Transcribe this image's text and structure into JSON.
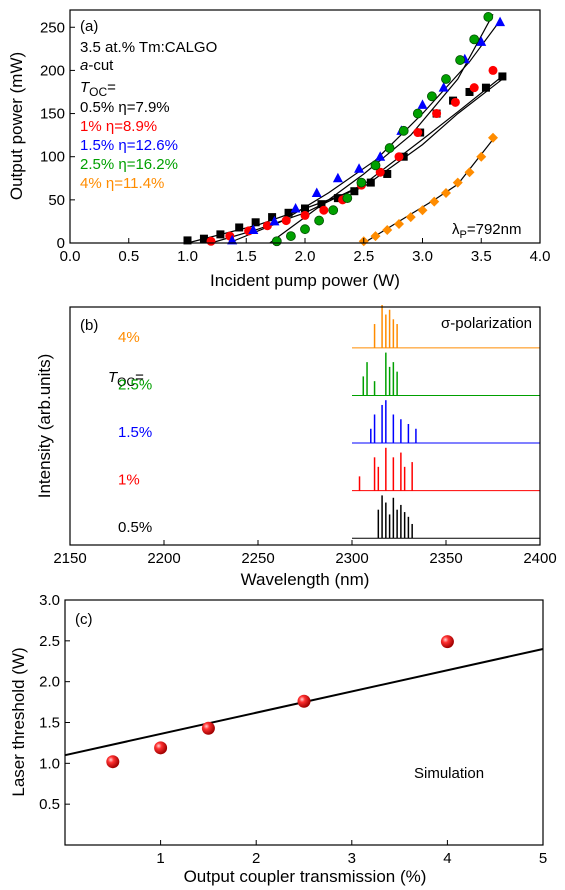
{
  "chart_data": [
    {
      "type": "scatter",
      "panel_label": "(a)",
      "xlabel": "Incident pump power (W)",
      "ylabel": "Output power (mW)",
      "xlim": [
        0,
        4
      ],
      "ylim": [
        0,
        270
      ],
      "xticks": [
        "0.0",
        "0.5",
        "1.0",
        "1.5",
        "2.0",
        "2.5",
        "3.0",
        "3.5",
        "4.0"
      ],
      "yticks": [
        "0",
        "50",
        "100",
        "150",
        "200",
        "250"
      ],
      "annotations": {
        "crystal": "3.5 at.% Tm:CALGO",
        "cut_italic": "a",
        "cut_rest": "-cut",
        "toc_italic": "T",
        "toc_sub": "OC",
        "toc_eq": "=",
        "pump_lambda": "λ",
        "pump_sub": "P",
        "pump_value": "=792nm"
      },
      "series": [
        {
          "name": "0.5% η=7.9%",
          "color": "#000000",
          "marker": "square",
          "x": [
            1.0,
            1.14,
            1.28,
            1.44,
            1.58,
            1.72,
            1.86,
            2.0,
            2.14,
            2.28,
            2.42,
            2.56,
            2.7,
            2.84,
            2.98,
            3.12,
            3.26,
            3.4,
            3.54,
            3.68
          ],
          "y": [
            3,
            5,
            10,
            18,
            24,
            30,
            35,
            40,
            45,
            52,
            60,
            70,
            80,
            100,
            128,
            150,
            165,
            175,
            180,
            193
          ],
          "fit": [
            [
              1.0,
              0
            ],
            [
              1.6,
              21
            ],
            [
              2.0,
              40
            ],
            [
              2.5,
              65
            ],
            [
              3.0,
              114
            ],
            [
              3.3,
              150
            ],
            [
              3.7,
              192
            ]
          ]
        },
        {
          "name": "1% η=8.9%",
          "color": "#ff0000",
          "marker": "circle",
          "x": [
            1.2,
            1.36,
            1.52,
            1.68,
            1.84,
            2.0,
            2.16,
            2.32,
            2.48,
            2.64,
            2.8,
            2.96,
            3.12,
            3.28,
            3.44,
            3.6
          ],
          "y": [
            2,
            8,
            14,
            20,
            26,
            32,
            38,
            50,
            67,
            82,
            100,
            128,
            150,
            163,
            180,
            200
          ],
          "fit": [
            [
              1.2,
              0
            ],
            [
              1.6,
              16
            ],
            [
              2.0,
              35
            ],
            [
              2.5,
              68
            ],
            [
              3.0,
              120
            ],
            [
              3.3,
              152
            ],
            [
              3.65,
              190
            ]
          ]
        },
        {
          "name": "1.5% η=12.6%",
          "color": "#0000ff",
          "marker": "triangle",
          "x": [
            1.38,
            1.56,
            1.74,
            1.92,
            2.1,
            2.28,
            2.46,
            2.64,
            2.82,
            3.0,
            3.18,
            3.36,
            3.5,
            3.66
          ],
          "y": [
            3,
            15,
            25,
            40,
            58,
            75,
            86,
            100,
            130,
            160,
            180,
            213,
            233,
            256
          ],
          "fit": [
            [
              1.35,
              0
            ],
            [
              1.8,
              25
            ],
            [
              2.2,
              58
            ],
            [
              2.6,
              96
            ],
            [
              3.0,
              150
            ],
            [
              3.4,
              210
            ],
            [
              3.65,
              256
            ]
          ]
        },
        {
          "name": "2.5% η=16.2%",
          "color": "#00a000",
          "marker": "circle",
          "x": [
            1.76,
            1.88,
            2.0,
            2.12,
            2.24,
            2.36,
            2.48,
            2.6,
            2.72,
            2.84,
            2.96,
            3.08,
            3.2,
            3.32,
            3.44,
            3.56
          ],
          "y": [
            2,
            8,
            16,
            26,
            38,
            52,
            70,
            90,
            110,
            130,
            150,
            170,
            190,
            212,
            236,
            262
          ],
          "fit": [
            [
              1.7,
              0
            ],
            [
              2.1,
              40
            ],
            [
              2.5,
              80
            ],
            [
              2.9,
              125
            ],
            [
              3.3,
              190
            ],
            [
              3.6,
              265
            ]
          ]
        },
        {
          "name": "4% η=11.4%",
          "color": "#ff8c00",
          "marker": "diamond",
          "x": [
            2.5,
            2.6,
            2.7,
            2.8,
            2.9,
            3.0,
            3.1,
            3.2,
            3.3,
            3.4,
            3.5,
            3.6
          ],
          "y": [
            2,
            8,
            15,
            22,
            30,
            38,
            48,
            58,
            70,
            82,
            100,
            122
          ],
          "fit": [
            [
              2.5,
              0
            ],
            [
              2.8,
              25
            ],
            [
              3.1,
              50
            ],
            [
              3.3,
              68
            ],
            [
              3.6,
              120
            ]
          ]
        }
      ]
    },
    {
      "type": "line",
      "panel_label": "(b)",
      "xlabel": "Wavelength (nm)",
      "ylabel": "Intensity (arb.units)",
      "xlim": [
        2150,
        2400
      ],
      "xticks": [
        "2150",
        "2200",
        "2250",
        "2300",
        "2350",
        "2400"
      ],
      "polarization": "σ-polarization",
      "toc_italic": "T",
      "toc_sub": "OC",
      "toc_eq": "=",
      "series": [
        {
          "name": "0.5%",
          "color": "#000000",
          "baseline_fraction": 0.02,
          "peaks": [
            [
              2314,
              0.6
            ],
            [
              2316,
              0.9
            ],
            [
              2318,
              0.75
            ],
            [
              2320,
              0.5
            ],
            [
              2322,
              0.85
            ],
            [
              2324,
              0.6
            ],
            [
              2326,
              0.7
            ],
            [
              2328,
              0.55
            ],
            [
              2330,
              0.45
            ],
            [
              2332,
              0.3
            ]
          ]
        },
        {
          "name": "1%",
          "color": "#ff0000",
          "baseline_fraction": 0.22,
          "peaks": [
            [
              2304,
              0.3
            ],
            [
              2312,
              0.7
            ],
            [
              2314,
              0.5
            ],
            [
              2318,
              0.9
            ],
            [
              2322,
              0.7
            ],
            [
              2326,
              0.8
            ],
            [
              2328,
              0.5
            ],
            [
              2332,
              0.6
            ]
          ]
        },
        {
          "name": "1.5%",
          "color": "#0000ff",
          "baseline_fraction": 0.42,
          "peaks": [
            [
              2310,
              0.3
            ],
            [
              2312,
              0.6
            ],
            [
              2316,
              0.8
            ],
            [
              2318,
              0.9
            ],
            [
              2322,
              0.6
            ],
            [
              2326,
              0.5
            ],
            [
              2330,
              0.4
            ],
            [
              2334,
              0.3
            ]
          ]
        },
        {
          "name": "2.5%",
          "color": "#00a000",
          "baseline_fraction": 0.62,
          "peaks": [
            [
              2306,
              0.4
            ],
            [
              2308,
              0.7
            ],
            [
              2312,
              0.3
            ],
            [
              2318,
              0.9
            ],
            [
              2320,
              0.6
            ],
            [
              2322,
              0.7
            ],
            [
              2324,
              0.5
            ]
          ]
        },
        {
          "name": "4%",
          "color": "#ff8c00",
          "baseline_fraction": 0.82,
          "peaks": [
            [
              2312,
              0.5
            ],
            [
              2316,
              0.9
            ],
            [
              2318,
              0.7
            ],
            [
              2320,
              0.8
            ],
            [
              2322,
              0.6
            ],
            [
              2324,
              0.5
            ]
          ]
        }
      ]
    },
    {
      "type": "scatter",
      "panel_label": "(c)",
      "xlabel": "Output coupler transmission (%)",
      "ylabel": "Laser threshold (W)",
      "xlim": [
        0,
        5
      ],
      "ylim": [
        0,
        3.0
      ],
      "xticks": [
        "1",
        "2",
        "3",
        "4",
        "5"
      ],
      "yticks": [
        "0.5",
        "1.0",
        "1.5",
        "2.0",
        "2.5",
        "3.0"
      ],
      "series": [
        {
          "name": "",
          "color": "#e00000",
          "marker": "sphere",
          "x": [
            0.5,
            1.0,
            1.5,
            2.5,
            4.0
          ],
          "y": [
            1.02,
            1.19,
            1.43,
            1.76,
            2.49
          ]
        }
      ],
      "line": {
        "name": "Simulation",
        "x": [
          0,
          5
        ],
        "y": [
          1.1,
          2.4
        ]
      }
    }
  ]
}
